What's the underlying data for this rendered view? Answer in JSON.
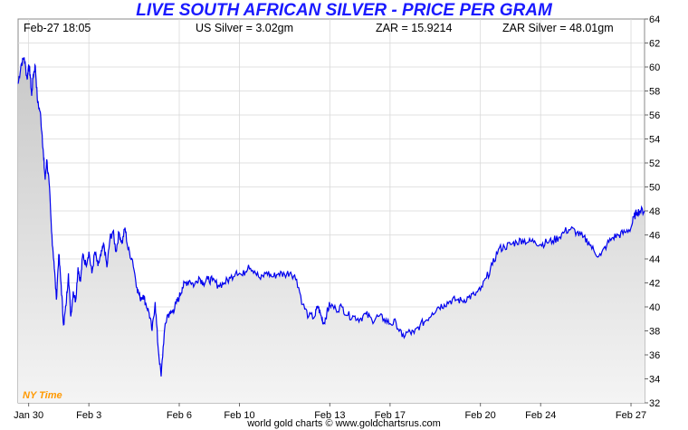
{
  "title": "LIVE SOUTH AFRICAN SILVER - PRICE PER GRAM",
  "header": {
    "timestamp": "Feb-27  18:05",
    "us_silver": "US Silver = 3.02gm",
    "zar_rate": "ZAR = 15.9214",
    "zar_silver": "ZAR Silver = 48.01gm"
  },
  "timezone_label": "NY Time",
  "credit": "world gold charts © www.goldchartsrus.com",
  "colors": {
    "title": "#1a1aff",
    "line": "#0000ee",
    "fill_top": "#c8c8c8",
    "fill_bottom": "#f4f4f4",
    "timezone_label": "#ff9900",
    "grid": "#d9d9d9"
  },
  "chart_data": {
    "type": "area",
    "xlabel": "",
    "ylabel": "",
    "ylim": [
      32,
      64
    ],
    "y_ticks": [
      32,
      34,
      36,
      38,
      40,
      42,
      44,
      46,
      48,
      50,
      52,
      54,
      56,
      58,
      60,
      62,
      64
    ],
    "x_ticks": [
      "Jan 30",
      "Feb 3",
      "Feb 6",
      "Feb 10",
      "Feb 13",
      "Feb 17",
      "Feb 20",
      "Feb 24",
      "Feb 27"
    ],
    "x_tick_index": [
      0,
      2,
      5,
      7,
      10,
      12,
      15,
      17,
      20
    ],
    "x_range_days": [
      -0.35,
      20.45
    ],
    "grid": true,
    "series": [
      {
        "x": [
          -0.35,
          -0.25,
          -0.15,
          -0.05,
          0.0,
          0.05,
          0.1,
          0.15,
          0.22,
          0.3,
          0.38,
          0.45,
          0.5,
          0.55,
          0.6,
          0.68,
          0.76,
          0.84,
          0.92,
          1.0,
          1.08,
          1.16,
          1.24,
          1.32,
          1.4,
          1.48,
          1.56,
          1.64,
          1.72,
          1.8,
          1.9,
          2.0,
          2.1,
          2.2,
          2.3,
          2.4,
          2.5,
          2.6,
          2.7,
          2.8,
          2.9,
          3.0,
          3.1,
          3.2,
          3.3,
          3.45,
          3.6,
          3.7,
          3.8,
          3.9,
          4.0,
          4.1,
          4.2,
          4.3,
          4.4,
          4.5,
          4.6,
          4.7,
          4.8,
          4.9,
          5.0,
          5.1,
          5.2,
          5.35,
          5.5,
          5.65,
          5.8,
          5.95,
          6.1,
          6.3,
          6.5,
          6.7,
          6.9,
          7.1,
          7.3,
          7.5,
          7.7,
          7.9,
          8.1,
          8.3,
          8.5,
          8.7,
          8.9,
          9.1,
          9.3,
          9.5,
          9.6,
          9.7,
          9.8,
          9.9,
          10.0,
          10.2,
          10.4,
          10.6,
          10.8,
          11.0,
          11.2,
          11.4,
          11.6,
          11.8,
          12.0,
          12.2,
          12.4,
          12.6,
          12.8,
          13.0,
          13.2,
          13.4,
          13.6,
          13.8,
          14.0,
          14.2,
          14.4,
          14.6,
          14.8,
          15.0,
          15.2,
          15.4,
          15.6,
          15.8,
          16.0,
          16.2,
          16.4,
          16.6,
          16.8,
          17.0,
          17.2,
          17.4,
          17.6,
          17.8,
          18.0,
          18.2,
          18.4,
          18.6,
          18.8,
          19.0,
          19.2,
          19.4,
          19.6,
          19.8,
          20.0,
          20.1,
          20.2,
          20.3,
          20.45
        ],
        "y": [
          58.6,
          60.2,
          60.8,
          59.0,
          60.2,
          59.4,
          57.6,
          59.3,
          60.1,
          57.0,
          56.3,
          54.3,
          52.3,
          50.6,
          52.3,
          50.3,
          46.3,
          43.8,
          40.6,
          44.4,
          41.8,
          38.5,
          40.1,
          42.8,
          39.2,
          41.3,
          40.5,
          43.3,
          42.1,
          44.4,
          43.5,
          44.6,
          42.8,
          44.6,
          43.4,
          44.3,
          45.2,
          43.3,
          45.7,
          46.3,
          44.6,
          46.2,
          45.3,
          46.6,
          44.8,
          43.9,
          41.6,
          40.7,
          41.0,
          40.2,
          39.5,
          38.0,
          40.4,
          36.6,
          34.2,
          37.8,
          39.3,
          39.4,
          39.7,
          40.3,
          40.8,
          41.6,
          42.0,
          42.2,
          41.8,
          42.5,
          42.0,
          42.3,
          42.2,
          41.8,
          42.0,
          42.4,
          43.0,
          42.6,
          43.5,
          43.0,
          42.3,
          42.9,
          42.5,
          42.8,
          42.7,
          42.9,
          42.3,
          40.2,
          39.2,
          39.2,
          40.1,
          39.3,
          38.6,
          39.5,
          40.2,
          39.8,
          40.0,
          39.3,
          39.2,
          39.0,
          39.4,
          38.9,
          39.2,
          39.0,
          38.6,
          38.7,
          37.5,
          37.9,
          37.8,
          38.5,
          38.9,
          39.5,
          40.0,
          40.2,
          40.5,
          40.6,
          40.5,
          40.8,
          41.0,
          41.4,
          42.4,
          43.5,
          44.8,
          45.0,
          45.2,
          45.4,
          45.6,
          45.4,
          45.5,
          45.2,
          45.4,
          45.5,
          45.8,
          46.3,
          46.5,
          46.2,
          45.8,
          45.4,
          44.5,
          44.3,
          45.2,
          45.8,
          46.0,
          46.2,
          46.6,
          47.5,
          47.9,
          48.0,
          48.01
        ]
      }
    ]
  }
}
